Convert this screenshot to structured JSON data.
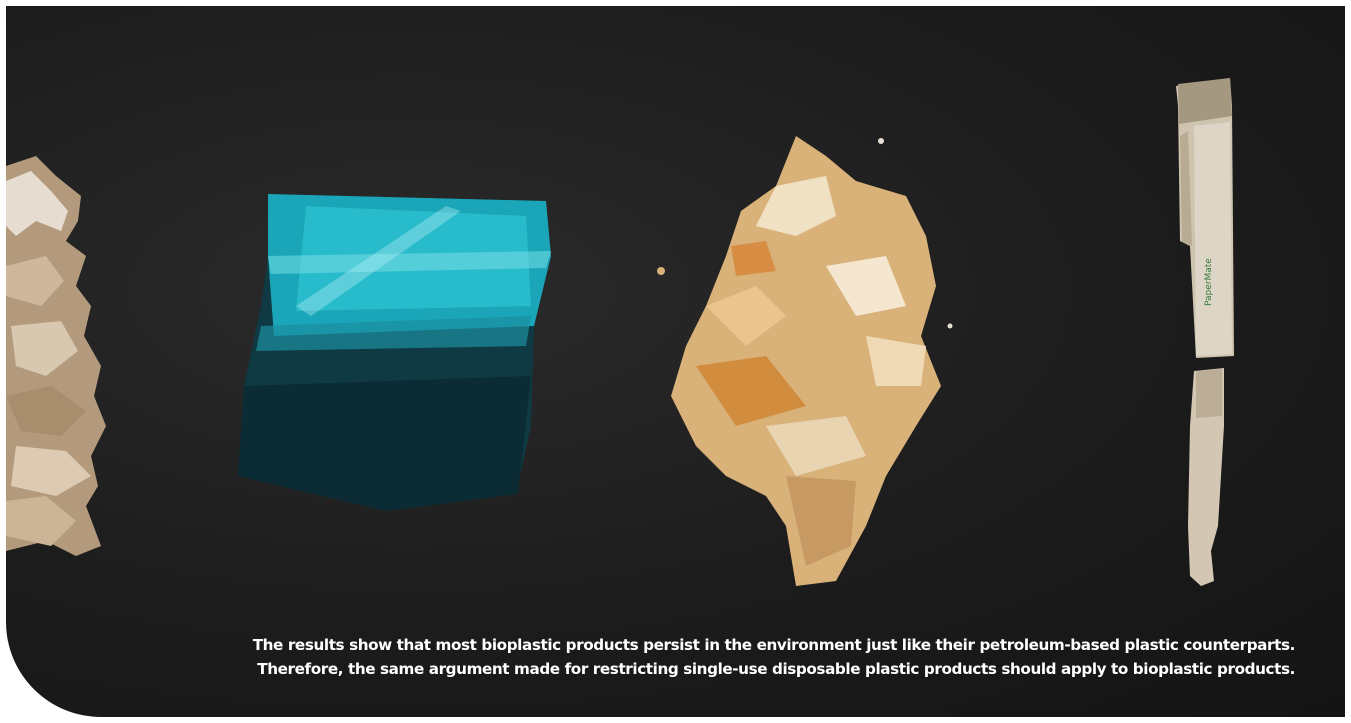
{
  "caption": {
    "line1": "The results show that most bioplastic products persist in the environment just like their petroleum-based plastic counterparts.",
    "line2": "Therefore, the same argument made for restricting single-use disposable plastic products should apply to bioplastic products."
  },
  "pen_brand": "PaperMate",
  "colors": {
    "background": "#1c1c1c",
    "bag": "#1aa6b8",
    "flakes": "#d9b27a",
    "paper": "#c8b39a",
    "pen": "#d8cfbf"
  }
}
